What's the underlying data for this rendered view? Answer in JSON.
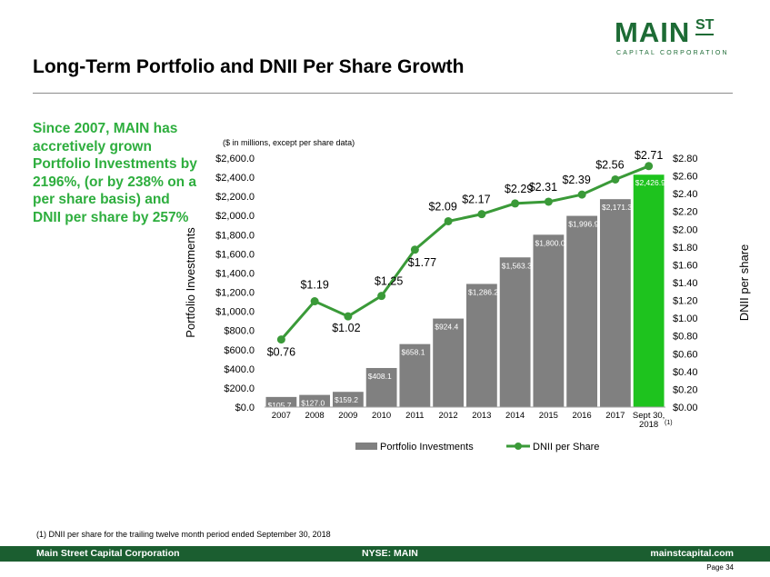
{
  "logo": {
    "main": "MAIN",
    "st": "ST",
    "sub": "CAPITAL CORPORATION"
  },
  "title": "Long-Term Portfolio and DNII Per Share Growth",
  "side_text": "Since 2007, MAIN has accretively grown Portfolio Investments by 2196%, (or by 238% on a per share basis) and DNII per share by 257%",
  "footnote": "(1)    DNII per share for the trailing twelve month period ended September 30, 2018",
  "footer": {
    "left": "Main Street Capital Corporation",
    "center": "NYSE: MAIN",
    "right": "mainstcapital.com"
  },
  "page_label": "Page  34",
  "colors": {
    "bar": "#808080",
    "bar_highlight": "#1ec31e",
    "line": "#3a9a38",
    "brand": "#1d6b35",
    "footer": "#1b5e30",
    "accent_text": "#2eae3e"
  },
  "chart_data": {
    "type": "bar+line",
    "subtitle": "($ in millions, except per share data)",
    "ylabel_left": "Portfolio Investments",
    "ylabel_right": "DNII per share",
    "categories": [
      "2007",
      "2008",
      "2009",
      "2010",
      "2011",
      "2012",
      "2013",
      "2014",
      "2015",
      "2016",
      "2017",
      "Sept 30,\n2018"
    ],
    "category_note": "(1)",
    "ylim_left": [
      0,
      2600
    ],
    "ylim_right": [
      0,
      2.8
    ],
    "left_ticks": [
      "$0.0",
      "$200.0",
      "$400.0",
      "$600.0",
      "$800.0",
      "$1,000.0",
      "$1,200.0",
      "$1,400.0",
      "$1,600.0",
      "$1,800.0",
      "$2,000.0",
      "$2,200.0",
      "$2,400.0",
      "$2,600.0"
    ],
    "right_ticks": [
      "$0.00",
      "$0.20",
      "$0.40",
      "$0.60",
      "$0.80",
      "$1.00",
      "$1.20",
      "$1.40",
      "$1.60",
      "$1.80",
      "$2.00",
      "$2.20",
      "$2.40",
      "$2.60",
      "$2.80"
    ],
    "series": [
      {
        "name": "Portfolio Investments",
        "type": "bar",
        "values": [
          105.7,
          127.0,
          159.2,
          408.1,
          658.1,
          924.4,
          1286.2,
          1563.3,
          1800.0,
          1996.9,
          2171.3,
          2426.9
        ],
        "labels": [
          "$105.7",
          "$127.0",
          "$159.2",
          "$408.1",
          "$658.1",
          "$924.4",
          "$1,286.2",
          "$1,563.3",
          "$1,800.0",
          "$1,996.9",
          "$2,171.3",
          "$2,426.9"
        ]
      },
      {
        "name": "DNII per Share",
        "type": "line",
        "values": [
          0.76,
          1.19,
          1.02,
          1.25,
          1.77,
          2.09,
          2.17,
          2.29,
          2.31,
          2.39,
          2.56,
          2.71
        ],
        "labels": [
          "$0.76",
          "$1.19",
          "$1.02",
          "$1.25",
          "$1.77",
          "$2.09",
          "$2.17",
          "$2.29",
          "$2.31",
          "$2.39",
          "$2.56",
          "$2.71"
        ]
      }
    ],
    "legend": {
      "position": "bottom",
      "entries": [
        "Portfolio Investments",
        "DNII per Share"
      ]
    },
    "grid": false
  }
}
